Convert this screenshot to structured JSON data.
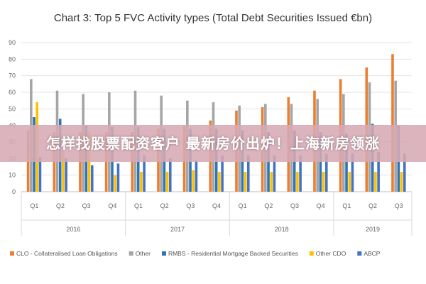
{
  "chart_data": {
    "type": "bar",
    "title": "Chart 3: Top 5 FVC Activity types (Total Debt Securities Issued €bn)",
    "ylim": [
      0,
      90
    ],
    "yticks": [
      0,
      10,
      20,
      30,
      40,
      50,
      60,
      70,
      80,
      90
    ],
    "grid": true,
    "legend_position": "bottom",
    "categories": [
      "Q1",
      "Q2",
      "Q3",
      "Q4",
      "Q1",
      "Q2",
      "Q3",
      "Q4",
      "Q1",
      "Q2",
      "Q3",
      "Q4",
      "Q1",
      "Q2",
      "Q3"
    ],
    "year_groups": [
      {
        "label": "2016",
        "count": 4
      },
      {
        "label": "2017",
        "count": 4
      },
      {
        "label": "2018",
        "count": 4
      },
      {
        "label": "2019",
        "count": 3
      }
    ],
    "series": [
      {
        "name": "CLO - Collateralised Loan Obligations",
        "color": "#ED7D31",
        "values": [
          37,
          36,
          36,
          36,
          36,
          38,
          40,
          43,
          49,
          51,
          57,
          61,
          68,
          75,
          83
        ]
      },
      {
        "name": "Other",
        "color": "#A5A5A5",
        "values": [
          68,
          61,
          59,
          60,
          61,
          58,
          55,
          54,
          52,
          53,
          53,
          56,
          59,
          66,
          67
        ]
      },
      {
        "name": "RMBS - Residential Mortgage Backed Securities",
        "color": "#2E75B6",
        "values": [
          45,
          44,
          40,
          39,
          39,
          38,
          38,
          38,
          37,
          36,
          37,
          36,
          35,
          41,
          40
        ]
      },
      {
        "name": "Other CDO",
        "color": "#FFC000",
        "values": [
          54,
          25,
          36,
          10,
          12,
          12,
          13,
          12,
          12,
          12,
          12,
          12,
          12,
          12,
          12
        ]
      },
      {
        "name": "ABCP",
        "color": "#4472C4",
        "values": [
          21,
          20,
          16,
          17,
          22,
          20,
          19,
          22,
          22,
          22,
          22,
          23,
          23,
          24,
          23
        ]
      }
    ]
  },
  "overlay_banner": {
    "text": "怎样找股票配资客户 最新房价出炉！上海新房领涨"
  }
}
